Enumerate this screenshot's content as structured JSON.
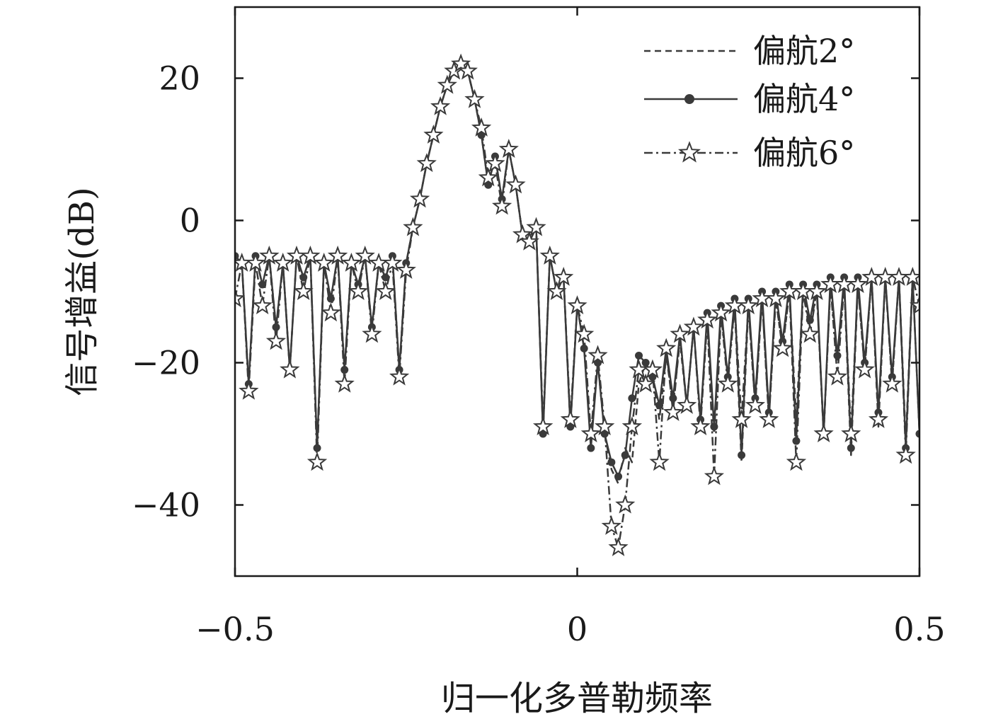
{
  "chart_data": {
    "type": "line",
    "title": "",
    "xlabel": "归一化多普勒频率",
    "ylabel": "信号增益(dB)",
    "xlim": [
      -0.5,
      0.5
    ],
    "ylim": [
      -50,
      30
    ],
    "xticks": [
      -0.5,
      0,
      0.5
    ],
    "xtick_labels": [
      "−0.5",
      "0",
      "0.5"
    ],
    "yticks": [
      20,
      0,
      -20,
      -40
    ],
    "ytick_labels": [
      "20",
      "0",
      "−20",
      "−40"
    ],
    "grid": false,
    "legend_position": "top-right",
    "x": [
      -0.5,
      -0.49,
      -0.48,
      -0.47,
      -0.46,
      -0.45,
      -0.44,
      -0.43,
      -0.42,
      -0.41,
      -0.4,
      -0.39,
      -0.38,
      -0.37,
      -0.36,
      -0.35,
      -0.34,
      -0.33,
      -0.32,
      -0.31,
      -0.3,
      -0.29,
      -0.28,
      -0.27,
      -0.26,
      -0.25,
      -0.24,
      -0.23,
      -0.22,
      -0.21,
      -0.2,
      -0.19,
      -0.18,
      -0.17,
      -0.16,
      -0.15,
      -0.14,
      -0.13,
      -0.12,
      -0.11,
      -0.1,
      -0.09,
      -0.08,
      -0.07,
      -0.06,
      -0.05,
      -0.04,
      -0.03,
      -0.02,
      -0.01,
      0.0,
      0.01,
      0.02,
      0.03,
      0.04,
      0.05,
      0.06,
      0.07,
      0.08,
      0.09,
      0.1,
      0.11,
      0.12,
      0.13,
      0.14,
      0.15,
      0.16,
      0.17,
      0.18,
      0.19,
      0.2,
      0.21,
      0.22,
      0.23,
      0.24,
      0.25,
      0.26,
      0.27,
      0.28,
      0.29,
      0.3,
      0.31,
      0.32,
      0.33,
      0.34,
      0.35,
      0.36,
      0.37,
      0.38,
      0.39,
      0.4,
      0.41,
      0.42,
      0.43,
      0.44,
      0.45,
      0.46,
      0.47,
      0.48,
      0.49,
      0.5
    ],
    "series": [
      {
        "name": "偏航2°",
        "style": "dashed",
        "marker": "none",
        "values": [
          -5,
          -6,
          -23,
          -5,
          -9,
          -5,
          -15,
          -6,
          -21,
          -5,
          -8,
          -5,
          -32,
          -6,
          -11,
          -5,
          -21,
          -6,
          -9,
          -5,
          -15,
          -6,
          -8,
          -5,
          -21,
          -6,
          -1,
          3,
          8,
          12,
          16,
          19,
          21,
          22,
          21,
          17,
          12,
          5,
          9,
          3,
          10,
          5,
          -2,
          -3,
          -1,
          -30,
          -5,
          -10,
          -8,
          -29,
          -12,
          -18,
          -31,
          -20,
          -30,
          -35,
          -37,
          -32,
          -34,
          -23,
          -20,
          -22,
          -28,
          -19,
          -26,
          -17,
          -26,
          -15,
          -28,
          -14,
          -30,
          -13,
          -22,
          -12,
          -34,
          -12,
          -26,
          -11,
          -28,
          -11,
          -18,
          -10,
          -28,
          -10,
          -15,
          -10,
          -30,
          -9,
          -20,
          -9,
          -33,
          -9,
          -21,
          -8,
          -29,
          -8,
          -23,
          -8,
          -31,
          -8,
          -30
        ]
      },
      {
        "name": "偏航4°",
        "style": "solid",
        "marker": "circle",
        "values": [
          -5,
          -6,
          -23,
          -5,
          -9,
          -5,
          -15,
          -6,
          -21,
          -5,
          -8,
          -5,
          -32,
          -6,
          -11,
          -5,
          -21,
          -6,
          -9,
          -5,
          -15,
          -6,
          -8,
          -5,
          -21,
          -6,
          -1,
          3,
          8,
          12,
          16,
          19,
          21,
          22,
          21,
          17,
          12,
          5,
          9,
          3,
          10,
          5,
          -2,
          -3,
          -1,
          -30,
          -5,
          -10,
          -8,
          -29,
          -12,
          -18,
          -32,
          -20,
          -30,
          -34,
          -36,
          -33,
          -25,
          -19,
          -20,
          -22,
          -26,
          -18,
          -25,
          -16,
          -26,
          -15,
          -28,
          -13,
          -29,
          -12,
          -22,
          -11,
          -33,
          -11,
          -25,
          -10,
          -27,
          -10,
          -17,
          -9,
          -31,
          -9,
          -14,
          -9,
          -30,
          -8,
          -19,
          -8,
          -32,
          -8,
          -20,
          -8,
          -27,
          -8,
          -22,
          -8,
          -32,
          -8,
          -30
        ]
      },
      {
        "name": "偏航6°",
        "style": "dashdot",
        "marker": "star",
        "values": [
          -11,
          -6,
          -24,
          -6,
          -12,
          -5,
          -17,
          -6,
          -21,
          -5,
          -10,
          -5,
          -34,
          -6,
          -13,
          -5,
          -23,
          -6,
          -10,
          -5,
          -16,
          -6,
          -10,
          -6,
          -22,
          -7,
          -1,
          3,
          8,
          12,
          16,
          19,
          21,
          22,
          21,
          17,
          13,
          6,
          8,
          2,
          10,
          5,
          -2,
          -3,
          -1,
          -29,
          -5,
          -10,
          -8,
          -28,
          -12,
          -16,
          -30,
          -19,
          -29,
          -43,
          -46,
          -40,
          -29,
          -21,
          -23,
          -21,
          -34,
          -18,
          -27,
          -16,
          -26,
          -15,
          -29,
          -14,
          -36,
          -13,
          -23,
          -12,
          -28,
          -12,
          -26,
          -11,
          -28,
          -11,
          -18,
          -10,
          -34,
          -10,
          -16,
          -10,
          -30,
          -9,
          -22,
          -9,
          -30,
          -9,
          -21,
          -8,
          -28,
          -8,
          -23,
          -8,
          -33,
          -8,
          -12
        ]
      }
    ]
  }
}
